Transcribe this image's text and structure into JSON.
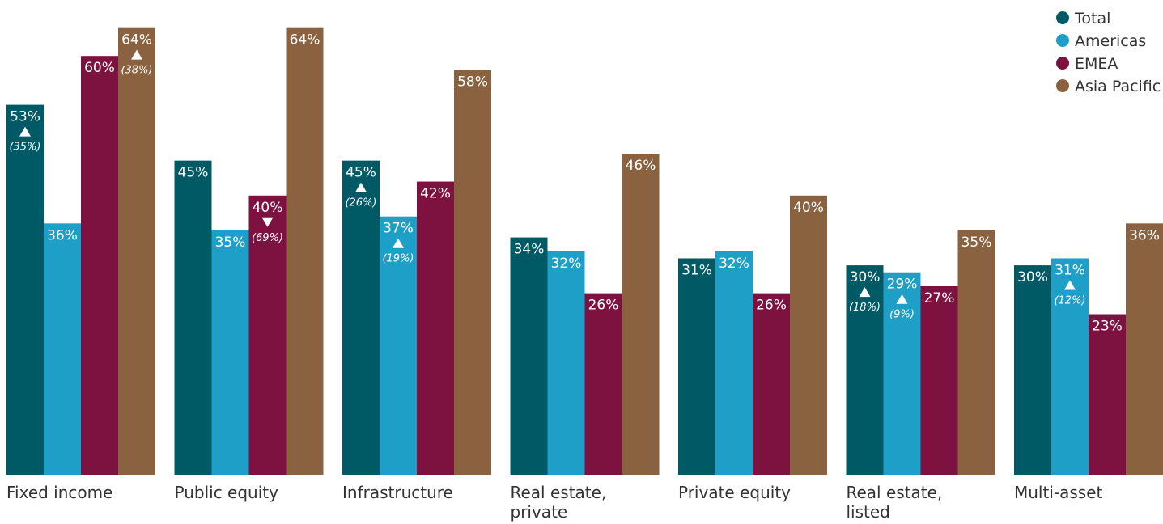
{
  "chart_data": {
    "type": "bar",
    "title": "",
    "xlabel": "",
    "ylabel": "",
    "ylim": [
      0,
      64
    ],
    "grid": false,
    "legend_position": "top-right",
    "categories": [
      [
        "Fixed income"
      ],
      [
        "Public equity"
      ],
      [
        "Infrastructure"
      ],
      [
        "Real estate,",
        "private"
      ],
      [
        "Private equity"
      ],
      [
        "Real estate,",
        "listed"
      ],
      [
        "Multi-asset"
      ]
    ],
    "series": [
      {
        "name": "Total",
        "color": "#005a66",
        "values": [
          53,
          45,
          45,
          34,
          31,
          30,
          30
        ],
        "value_labels": [
          "53%",
          "45%",
          "45%",
          "34%",
          "31%",
          "30%",
          "30%"
        ],
        "changes": [
          {
            "dir": "up",
            "text": "(35%)"
          },
          null,
          {
            "dir": "up",
            "text": "(26%)"
          },
          null,
          null,
          {
            "dir": "up",
            "text": "(18%)"
          },
          null
        ]
      },
      {
        "name": "Americas",
        "color": "#1e9fc7",
        "values": [
          36,
          35,
          37,
          32,
          32,
          29,
          31
        ],
        "value_labels": [
          "36%",
          "35%",
          "37%",
          "32%",
          "32%",
          "29%",
          "31%"
        ],
        "changes": [
          null,
          null,
          {
            "dir": "up",
            "text": "(19%)"
          },
          null,
          null,
          {
            "dir": "up",
            "text": "(9%)"
          },
          {
            "dir": "up",
            "text": "(12%)"
          }
        ]
      },
      {
        "name": "EMEA",
        "color": "#7d1240",
        "values": [
          60,
          40,
          42,
          26,
          26,
          27,
          23
        ],
        "value_labels": [
          "60%",
          "40%",
          "42%",
          "26%",
          "26%",
          "27%",
          "23%"
        ],
        "changes": [
          null,
          {
            "dir": "down",
            "text": "(69%)"
          },
          null,
          null,
          null,
          null,
          null
        ]
      },
      {
        "name": "Asia Pacific",
        "color": "#8b6240",
        "values": [
          64,
          64,
          58,
          46,
          40,
          35,
          36
        ],
        "value_labels": [
          "64%",
          "64%",
          "58%",
          "46%",
          "40%",
          "35%",
          "36%"
        ],
        "changes": [
          {
            "dir": "up",
            "text": "(38%)"
          },
          null,
          null,
          null,
          null,
          null,
          null
        ]
      }
    ]
  }
}
